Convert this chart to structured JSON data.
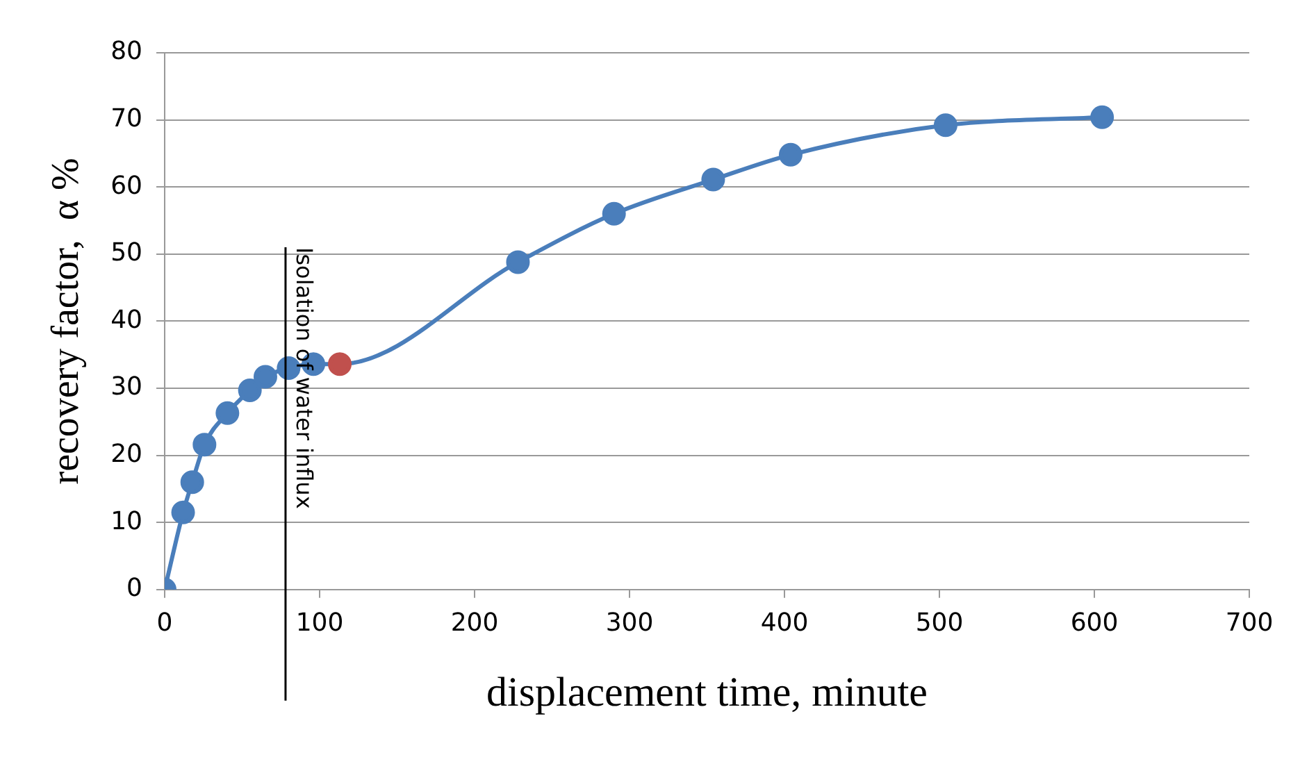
{
  "chart_data": {
    "type": "line",
    "xlabel": "displacement time, minute",
    "ylabel": "recovery factor,  α %",
    "series": [
      {
        "color": "#4a7ebb",
        "x": [
          0,
          11.9,
          17.8,
          25.7,
          40.5,
          55,
          65,
          80,
          96,
          113,
          228,
          290,
          354,
          404,
          504,
          605
        ],
        "values": [
          0,
          11.5,
          16,
          21.6,
          26.3,
          29.7,
          31.7,
          33,
          33.6,
          33.6,
          48.8,
          56,
          61.1,
          64.8,
          69.2,
          70.4
        ],
        "colors": [
          "#4a7ebb",
          "#4a7ebb",
          "#4a7ebb",
          "#4a7ebb",
          "#4a7ebb",
          "#4a7ebb",
          "#4a7ebb",
          "#4a7ebb",
          "#4a7ebb",
          "#c0504d",
          "#4a7ebb",
          "#4a7ebb",
          "#4a7ebb",
          "#4a7ebb",
          "#4a7ebb",
          "#4a7ebb"
        ]
      }
    ],
    "xlim": [
      0,
      700
    ],
    "xticks": [
      0,
      100,
      200,
      300,
      400,
      500,
      600,
      700
    ],
    "ylim": [
      0,
      80
    ],
    "yticks": [
      0,
      10,
      20,
      30,
      40,
      50,
      60,
      70,
      80
    ],
    "grid": "y",
    "legend": false,
    "marker": "circle",
    "line_style": "solid",
    "ref_lines": [
      {
        "axis": "x",
        "value": 78,
        "label": "Isolation of water influx",
        "color": "#000000"
      }
    ]
  }
}
